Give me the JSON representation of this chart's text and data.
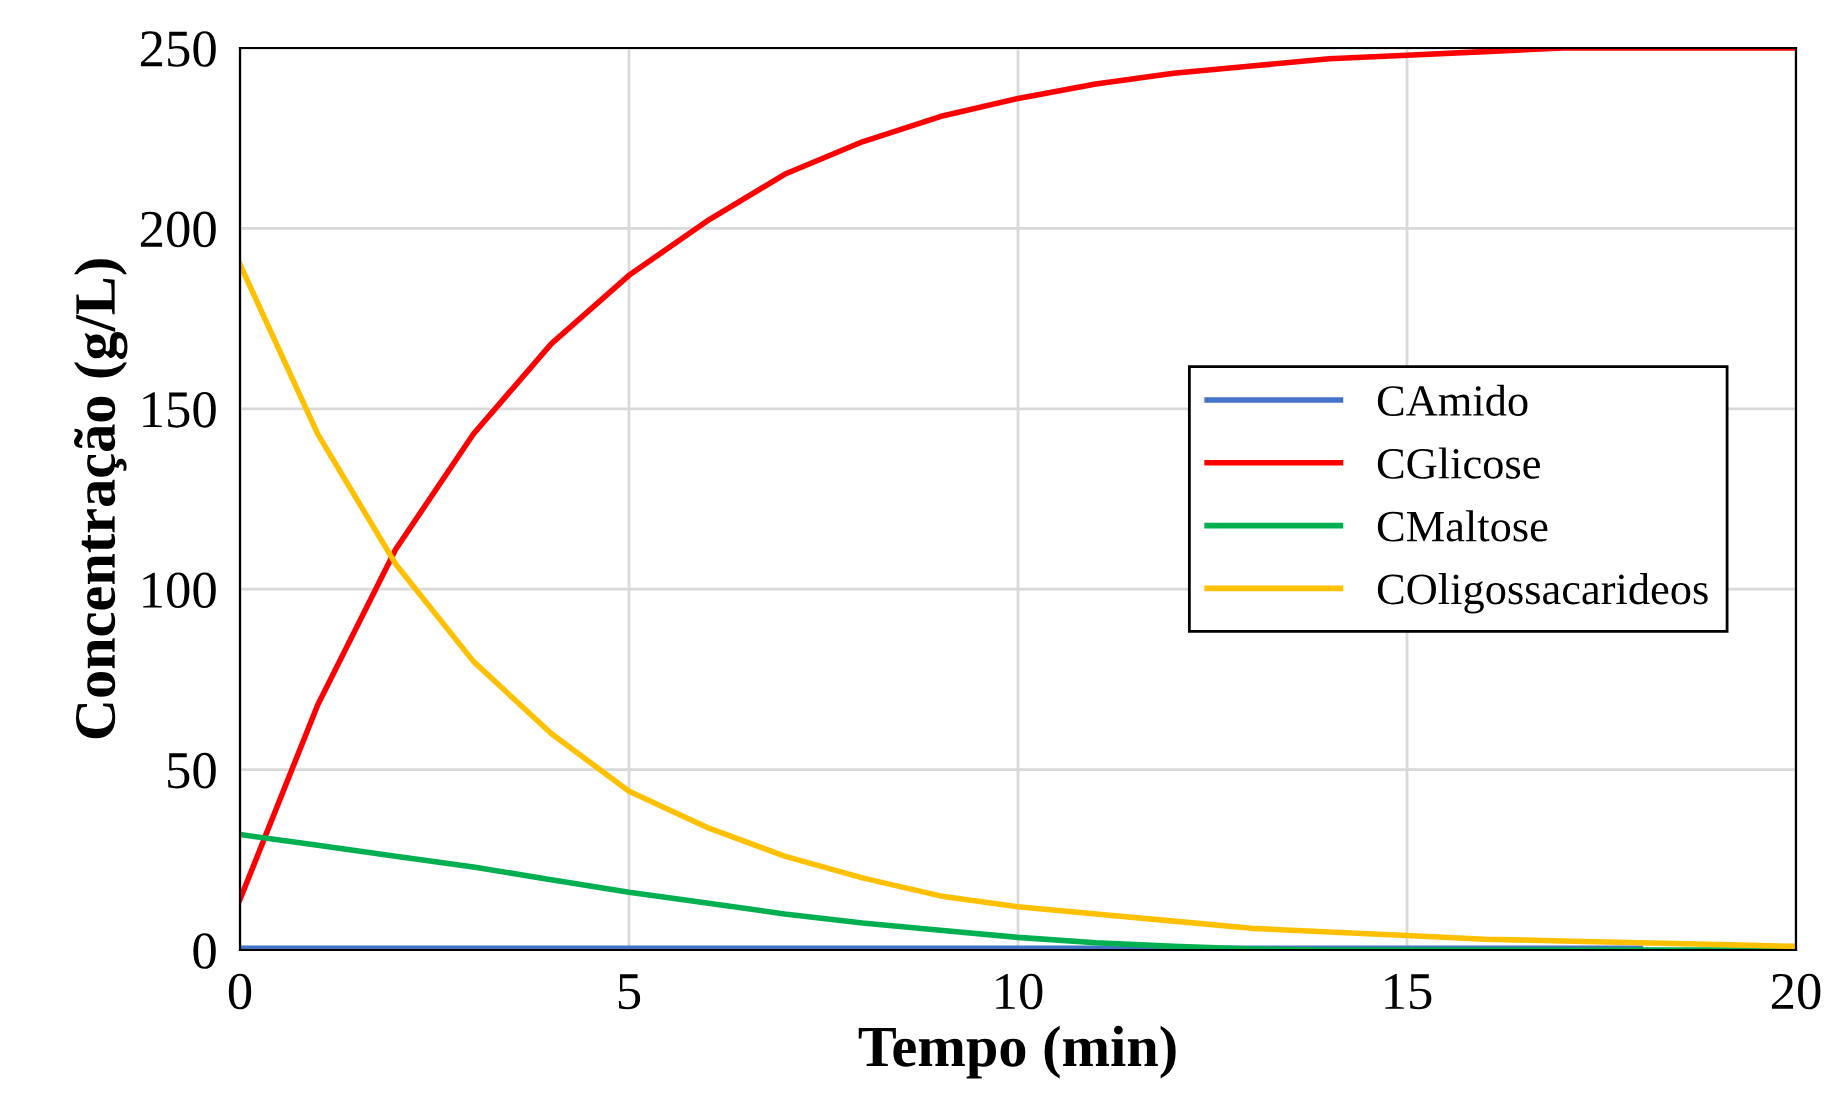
{
  "chart_data": {
    "type": "line",
    "xlabel": "Tempo (min)",
    "ylabel": "Concentração (g/L)",
    "x": [
      0,
      1,
      2,
      3,
      4,
      5,
      6,
      7,
      8,
      9,
      10,
      11,
      12,
      13,
      14,
      15,
      16,
      17,
      18,
      19,
      20
    ],
    "series": [
      {
        "name": "CAmido",
        "color": "#4472c4",
        "values": [
          0.5,
          0.5,
          0.5,
          0.5,
          0.5,
          0.5,
          0.5,
          0.5,
          0.5,
          0.5,
          0.5,
          0.5,
          0.5,
          0.5,
          0.5,
          0.5,
          0.5,
          0.5,
          0.5,
          null,
          null
        ]
      },
      {
        "name": "CGlicose",
        "color": "#ff0000",
        "values": [
          14,
          68,
          111,
          143,
          168,
          187,
          202,
          215,
          224,
          231,
          236,
          240,
          243,
          245,
          247,
          248,
          249,
          250,
          250,
          250,
          250
        ]
      },
      {
        "name": "CMaltose",
        "color": "#00b050",
        "values": [
          32,
          29,
          26,
          23,
          19.5,
          16,
          13,
          10,
          7.5,
          5.5,
          3.5,
          2,
          1,
          0.3,
          0,
          0,
          0,
          0,
          0,
          0,
          0
        ]
      },
      {
        "name": "COligossacarideos",
        "color": "#ffc000",
        "values": [
          190,
          143,
          107,
          80,
          60,
          44,
          34,
          26,
          20,
          15,
          12,
          10,
          8,
          6,
          5,
          4,
          3,
          2.5,
          2,
          1.5,
          1
        ]
      }
    ],
    "xlim": [
      0,
      20
    ],
    "xticks": [
      0,
      5,
      10,
      15,
      20
    ],
    "ylim": [
      0,
      250
    ],
    "yticks": [
      0,
      50,
      100,
      150,
      200,
      250
    ],
    "grid": true,
    "legend": "right",
    "line_style": "solid",
    "marker": "none"
  }
}
